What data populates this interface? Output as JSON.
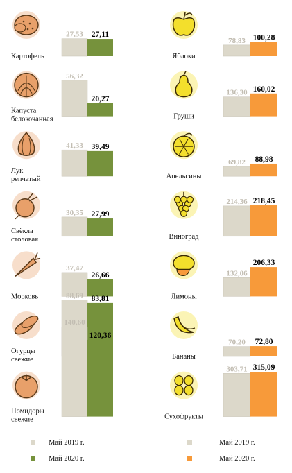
{
  "chart_data": [
    {
      "type": "bar",
      "categories": [
        "Картофель",
        "Капуста белокочанная",
        "Лук репчатый",
        "Свёкла столовая",
        "Морковь",
        "Огурцы свежие",
        "Помидоры свежие"
      ],
      "icons": [
        "potato-icon",
        "cabbage-icon",
        "onion-icon",
        "beet-icon",
        "carrot-icon",
        "cucumber-icon",
        "tomato-icon"
      ],
      "series": [
        {
          "name": "Май 2019 г.",
          "color": "#dcd8ca",
          "values": [
            27.53,
            56.32,
            41.33,
            30.35,
            37.47,
            88.69,
            140.6
          ],
          "labels": [
            "27,53",
            "56,32",
            "41,33",
            "30,35",
            "37,47",
            "88,69",
            "140,60"
          ]
        },
        {
          "name": "Май 2020 г.",
          "color": "#76923c",
          "values": [
            27.11,
            20.27,
            39.49,
            27.99,
            26.66,
            83.81,
            120.36
          ],
          "labels": [
            "27,11",
            "20,27",
            "39,49",
            "27,99",
            "26,66",
            "83,81",
            "120,36"
          ]
        }
      ],
      "icon_color": "#e8a06a"
    },
    {
      "type": "bar",
      "categories": [
        "Яблоки",
        "Груши",
        "Апельсины",
        "Виноград",
        "Лимоны",
        "Бананы",
        "Сухофрукты"
      ],
      "icons": [
        "apple-icon",
        "pear-icon",
        "orange-icon",
        "grapes-icon",
        "lemon-icon",
        "banana-icon",
        "dried-fruit-icon"
      ],
      "series": [
        {
          "name": "Май 2019 г.",
          "color": "#dcd8ca",
          "values": [
            78.83,
            136.3,
            69.82,
            214.36,
            132.06,
            70.2,
            303.71
          ],
          "labels": [
            "78,83",
            "136,30",
            "69,82",
            "214,36",
            "132,06",
            "70,20",
            "303,71"
          ]
        },
        {
          "name": "Май 2020 г.",
          "color": "#f79a3a",
          "values": [
            100.28,
            160.02,
            88.98,
            218.45,
            206.33,
            72.8,
            315.09
          ],
          "labels": [
            "100,28",
            "160,02",
            "88,98",
            "218,45",
            "206,33",
            "72,80",
            "315,09"
          ]
        }
      ],
      "icon_color": "#f3df2c"
    }
  ],
  "legend": {
    "left": [
      {
        "label": "Май 2019 г.",
        "color": "#dcd8ca"
      },
      {
        "label": "Май 2020 г.",
        "color": "#76923c"
      }
    ],
    "right": [
      {
        "label": "Май 2019 г.",
        "color": "#dcd8ca"
      },
      {
        "label": "Май 2020 г.",
        "color": "#f79a3a"
      }
    ]
  }
}
